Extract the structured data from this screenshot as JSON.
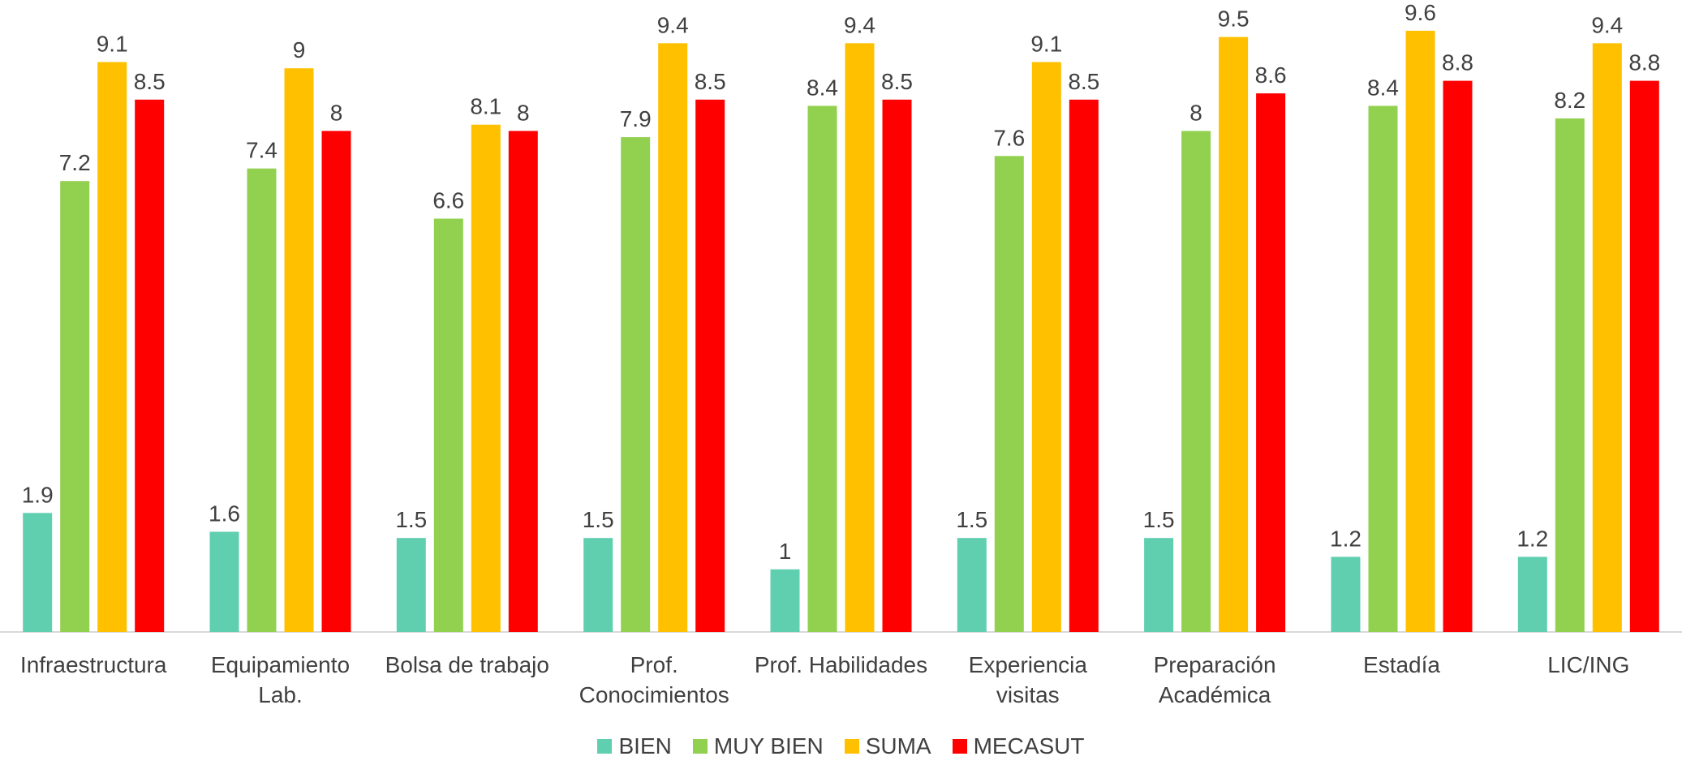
{
  "chart_data": {
    "type": "bar",
    "title": "",
    "xlabel": "",
    "ylabel": "",
    "ylim": [
      0,
      10
    ],
    "grid": false,
    "legend_position": "bottom",
    "categories": [
      [
        "Infraestructura"
      ],
      [
        "Equipamiento",
        "Lab."
      ],
      [
        "Bolsa de trabajo"
      ],
      [
        "Prof.",
        "Conocimientos"
      ],
      [
        "Prof. Habilidades"
      ],
      [
        "Experiencia",
        "visitas"
      ],
      [
        "Preparación",
        "Académica"
      ],
      [
        "Estadía"
      ],
      [
        "LIC/ING"
      ]
    ],
    "series": [
      {
        "name": "BIEN",
        "color": "#5fcfb0",
        "values": [
          1.9,
          1.6,
          1.5,
          1.5,
          1,
          1.5,
          1.5,
          1.2,
          1.2
        ]
      },
      {
        "name": "MUY BIEN",
        "color": "#92d050",
        "values": [
          7.2,
          7.4,
          6.6,
          7.9,
          8.4,
          7.6,
          8,
          8.4,
          8.2
        ]
      },
      {
        "name": "SUMA",
        "color": "#ffc000",
        "values": [
          9.1,
          9,
          8.1,
          9.4,
          9.4,
          9.1,
          9.5,
          9.6,
          9.4
        ]
      },
      {
        "name": "MECASUT",
        "color": "#ff0000",
        "values": [
          8.5,
          8,
          8,
          8.5,
          8.5,
          8.5,
          8.6,
          8.8,
          8.8
        ]
      }
    ]
  }
}
